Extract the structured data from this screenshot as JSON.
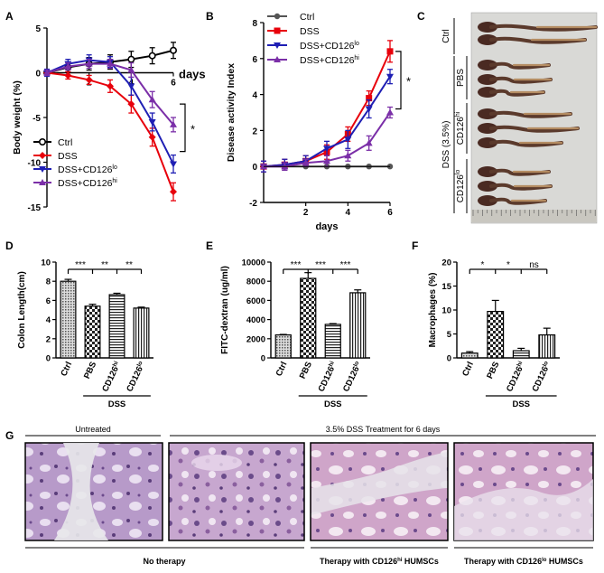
{
  "panel_letters": [
    "A",
    "B",
    "C",
    "D",
    "E",
    "F",
    "G"
  ],
  "colors": {
    "ctrl": "#000000",
    "ctrlB": "#555555",
    "dss": "#e8000b",
    "lo": "#1f1fb4",
    "hi": "#7b2fa8"
  },
  "chart_data": [
    {
      "panel": "A",
      "type": "line",
      "title": "",
      "xlabel": "days",
      "ylabel": "Body weight (%)",
      "ylim": [
        -15,
        5
      ],
      "yticks": [
        "-15",
        "-10",
        "-5",
        "0",
        "5"
      ],
      "xticks": [
        "2",
        "4",
        "6"
      ],
      "x": [
        0,
        1,
        2,
        3,
        4,
        5,
        6
      ],
      "series": [
        {
          "name": "Ctrl",
          "values": [
            0,
            0.6,
            1.0,
            1.2,
            1.5,
            1.9,
            2.5
          ],
          "errors": [
            0.3,
            0.5,
            0.7,
            0.8,
            0.9,
            0.9,
            0.9
          ]
        },
        {
          "name": "DSS",
          "values": [
            0,
            -0.3,
            -0.8,
            -1.5,
            -3.5,
            -7.2,
            -13.3
          ],
          "errors": [
            0.3,
            0.4,
            0.5,
            0.7,
            1.0,
            1.0,
            1.0
          ]
        },
        {
          "name": "DSS+CD126lo",
          "values": [
            0,
            1.0,
            1.4,
            1.2,
            -1.5,
            -5.5,
            -10.2
          ],
          "errors": [
            0.4,
            0.5,
            0.6,
            0.6,
            1.0,
            1.0,
            1.0
          ]
        },
        {
          "name": "DSS+CD126hi",
          "values": [
            0,
            0.7,
            1.0,
            1.0,
            0.3,
            -3.0,
            -5.8
          ],
          "errors": [
            0.3,
            0.4,
            0.5,
            0.5,
            0.8,
            0.9,
            0.8
          ]
        }
      ],
      "legend": [
        "Ctrl",
        "DSS",
        "DSS+CD126",
        "DSS+CD126"
      ],
      "legend_sup": [
        "",
        "",
        "lo",
        "hi"
      ],
      "significance": "*"
    },
    {
      "panel": "B",
      "type": "line",
      "title": "",
      "xlabel": "days",
      "ylabel": "Disease activity Index",
      "ylim": [
        -2,
        8
      ],
      "yticks": [
        "-2",
        "0",
        "2",
        "4",
        "6",
        "8"
      ],
      "xticks": [
        "2",
        "4",
        "6"
      ],
      "x": [
        0,
        1,
        2,
        3,
        4,
        5,
        6
      ],
      "series": [
        {
          "name": "Ctrl",
          "values": [
            0,
            0,
            0,
            0,
            0,
            0,
            0
          ],
          "errors": [
            0,
            0,
            0,
            0,
            0,
            0,
            0
          ]
        },
        {
          "name": "DSS",
          "values": [
            0,
            0.1,
            0.3,
            0.8,
            1.8,
            3.8,
            6.4
          ],
          "errors": [
            0.3,
            0.3,
            0.3,
            0.4,
            0.4,
            0.4,
            0.6
          ]
        },
        {
          "name": "DSS+CD126lo",
          "values": [
            0,
            0.1,
            0.3,
            1.0,
            1.5,
            3.2,
            5.0
          ],
          "errors": [
            0.3,
            0.3,
            0.3,
            0.4,
            0.5,
            0.5,
            0.4
          ]
        },
        {
          "name": "DSS+CD126hi",
          "values": [
            0,
            0,
            0.2,
            0.3,
            0.6,
            1.3,
            3.0
          ],
          "errors": [
            0.1,
            0.2,
            0.2,
            0.3,
            0.3,
            0.4,
            0.3
          ]
        }
      ],
      "legend": [
        "Ctrl",
        "DSS",
        "DSS+CD126",
        "DSS+CD126"
      ],
      "legend_sup": [
        "",
        "",
        "lo",
        "hi"
      ],
      "significance": "*"
    },
    {
      "panel": "D",
      "type": "bar",
      "ylabel": "Colon Length(cm)",
      "ylim": [
        0,
        10
      ],
      "yticks": [
        "0",
        "2",
        "4",
        "6",
        "8",
        "10"
      ],
      "categories": [
        "Ctrl",
        "PBS",
        "CD126",
        "CD126"
      ],
      "category_sup": [
        "",
        "",
        "hi",
        "lo"
      ],
      "values": [
        8.0,
        5.4,
        6.6,
        5.2
      ],
      "errors": [
        0.2,
        0.2,
        0.15,
        0.1
      ],
      "group_label": "DSS",
      "significance": [
        "***",
        "**",
        "**"
      ]
    },
    {
      "panel": "E",
      "type": "bar",
      "ylabel": "FITC-dextran (ug/ml)",
      "ylim": [
        0,
        10000
      ],
      "yticks": [
        "0",
        "2000",
        "4000",
        "6000",
        "8000",
        "10000"
      ],
      "categories": [
        "Ctrl",
        "PBS",
        "CD126",
        "CD126"
      ],
      "category_sup": [
        "",
        "",
        "hi",
        "lo"
      ],
      "values": [
        2400,
        8300,
        3500,
        6800
      ],
      "errors": [
        50,
        600,
        80,
        300
      ],
      "group_label": "DSS",
      "significance": [
        "***",
        "***",
        "***"
      ]
    },
    {
      "panel": "F",
      "type": "bar",
      "ylabel": "Macrophages (%)",
      "ylim": [
        0,
        20
      ],
      "yticks": [
        "0",
        "5",
        "10",
        "15",
        "20"
      ],
      "categories": [
        "Ctrl",
        "PBS",
        "CD126",
        "CD126"
      ],
      "category_sup": [
        "",
        "",
        "hi",
        "lo"
      ],
      "values": [
        1.0,
        9.7,
        1.5,
        4.8
      ],
      "errors": [
        0.3,
        2.3,
        0.5,
        1.4
      ],
      "group_label": "DSS",
      "significance": [
        "*",
        "*",
        "ns"
      ]
    }
  ],
  "panelC": {
    "label_ctrl": "Ctrl",
    "label_dss": "DSS (3.5%)",
    "label_pbs": "PBS",
    "label_hi": "CD126",
    "label_hi_sup": "hi",
    "label_lo": "CD126",
    "label_lo_sup": "lo"
  },
  "panelG": {
    "top_untreated": "Untreated",
    "top_dss": "3.5% DSS Treatment for 6 days",
    "bottom_none": "No therapy",
    "bottom_hi_pre": "Therapy with CD126",
    "bottom_hi_sup": "hi",
    "bottom_hi_post": " HUMSCs",
    "bottom_lo_pre": "Therapy with CD126",
    "bottom_lo_sup": "lo",
    "bottom_lo_post": " HUMSCs"
  }
}
